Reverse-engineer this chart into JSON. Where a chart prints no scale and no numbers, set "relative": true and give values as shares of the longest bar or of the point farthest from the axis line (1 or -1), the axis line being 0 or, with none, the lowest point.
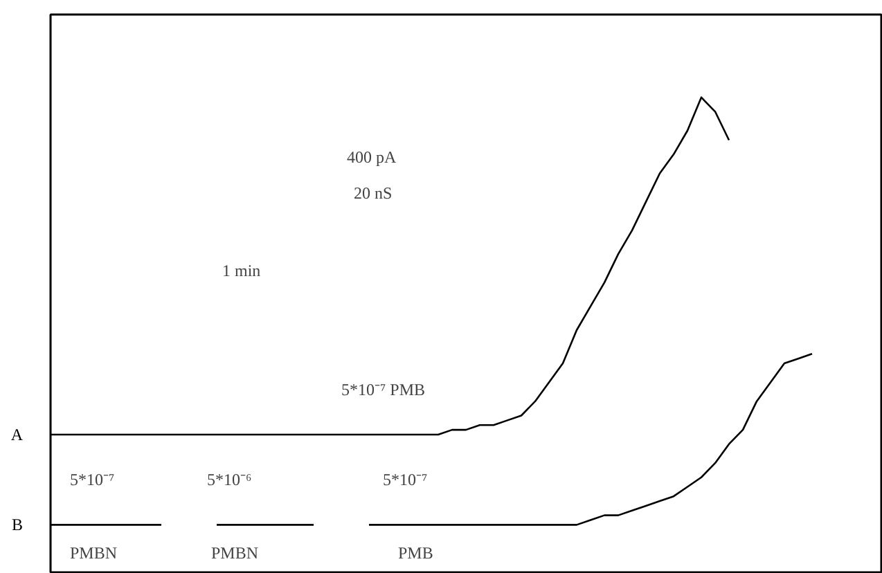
{
  "chart_data": {
    "type": "line",
    "relative": true,
    "categories": [
      null,
      null,
      null,
      null,
      null,
      null,
      null,
      null,
      null,
      null,
      null,
      null,
      null,
      null,
      null,
      null,
      null,
      null,
      null,
      null,
      null,
      null,
      null,
      null,
      null,
      null,
      null,
      null,
      null,
      null,
      null,
      null,
      null,
      null,
      null,
      null,
      null,
      null,
      null,
      null,
      null,
      null,
      null,
      null,
      null,
      null,
      null,
      null,
      null,
      null,
      null,
      null,
      null,
      null,
      null,
      null,
      null,
      null,
      null,
      null,
      null
    ],
    "series": [
      {
        "name": "A",
        "color": "#000000",
        "values": [
          0.29,
          0.29,
          0.29,
          0.29,
          0.29,
          0.29,
          0.29,
          0.29,
          0.29,
          0.29,
          0.29,
          0.29,
          0.29,
          0.29,
          0.29,
          0.29,
          0.29,
          0.29,
          0.29,
          0.29,
          0.29,
          0.29,
          0.29,
          0.29,
          0.29,
          0.29,
          0.29,
          0.29,
          0.29,
          0.3,
          0.3,
          0.31,
          0.31,
          0.32,
          0.33,
          0.36,
          0.4,
          0.44,
          0.51,
          0.56,
          0.61,
          0.67,
          0.72,
          0.78,
          0.84,
          0.88,
          0.93,
          1.0,
          0.97,
          0.91,
          null,
          null,
          null,
          null,
          null,
          null,
          null,
          null,
          null,
          null,
          null
        ]
      },
      {
        "name": "B",
        "color": "#000000",
        "values": [
          0.1,
          0.1,
          0.1,
          0.1,
          0.1,
          0.1,
          0.1,
          0.1,
          0.1,
          null,
          null,
          null,
          0.1,
          0.1,
          0.1,
          0.1,
          0.1,
          0.1,
          0.1,
          0.1,
          null,
          null,
          null,
          0.1,
          0.1,
          0.1,
          0.1,
          0.1,
          0.1,
          0.1,
          0.1,
          0.1,
          0.1,
          0.1,
          0.1,
          0.1,
          0.1,
          0.1,
          0.1,
          0.11,
          0.12,
          0.12,
          0.13,
          0.14,
          0.15,
          0.16,
          0.18,
          0.2,
          0.23,
          0.27,
          0.3,
          0.36,
          0.4,
          0.44,
          0.45,
          0.46,
          null,
          null,
          null,
          null,
          null
        ]
      }
    ],
    "annotations": [
      "400 pA",
      "20 nS",
      "1 min",
      "5*10⁻⁷ PMB",
      "5*10⁻⁷",
      "PMBN",
      "5*10⁻⁶",
      "PMBN",
      "5*10⁻⁷",
      "PMB"
    ],
    "grid": false,
    "marker": "none",
    "line_style": "solid"
  }
}
